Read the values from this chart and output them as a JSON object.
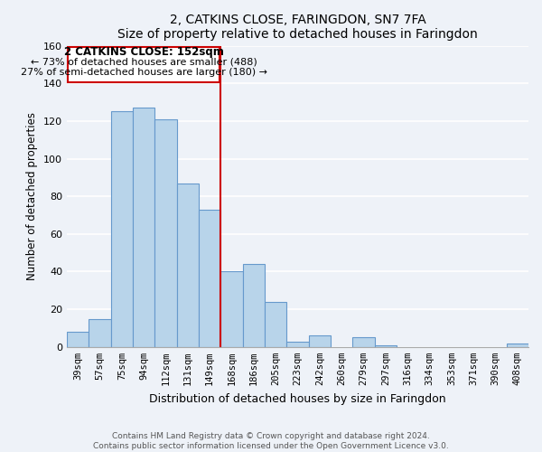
{
  "title": "2, CATKINS CLOSE, FARINGDON, SN7 7FA",
  "subtitle": "Size of property relative to detached houses in Faringdon",
  "xlabel": "Distribution of detached houses by size in Faringdon",
  "ylabel": "Number of detached properties",
  "bar_labels": [
    "39sqm",
    "57sqm",
    "75sqm",
    "94sqm",
    "112sqm",
    "131sqm",
    "149sqm",
    "168sqm",
    "186sqm",
    "205sqm",
    "223sqm",
    "242sqm",
    "260sqm",
    "279sqm",
    "297sqm",
    "316sqm",
    "334sqm",
    "353sqm",
    "371sqm",
    "390sqm",
    "408sqm"
  ],
  "bar_values": [
    8,
    15,
    125,
    127,
    121,
    87,
    73,
    40,
    44,
    24,
    3,
    6,
    0,
    5,
    1,
    0,
    0,
    0,
    0,
    0,
    2
  ],
  "bar_color": "#b8d4ea",
  "bar_edge_color": "#6699cc",
  "vline_color": "#cc0000",
  "ylim": [
    0,
    160
  ],
  "yticks": [
    0,
    20,
    40,
    60,
    80,
    100,
    120,
    140,
    160
  ],
  "annotation_title": "2 CATKINS CLOSE: 152sqm",
  "annotation_line1": "← 73% of detached houses are smaller (488)",
  "annotation_line2": "27% of semi-detached houses are larger (180) →",
  "box_color": "#cc0000",
  "footer_line1": "Contains HM Land Registry data © Crown copyright and database right 2024.",
  "footer_line2": "Contains public sector information licensed under the Open Government Licence v3.0.",
  "bg_color": "#eef2f8"
}
